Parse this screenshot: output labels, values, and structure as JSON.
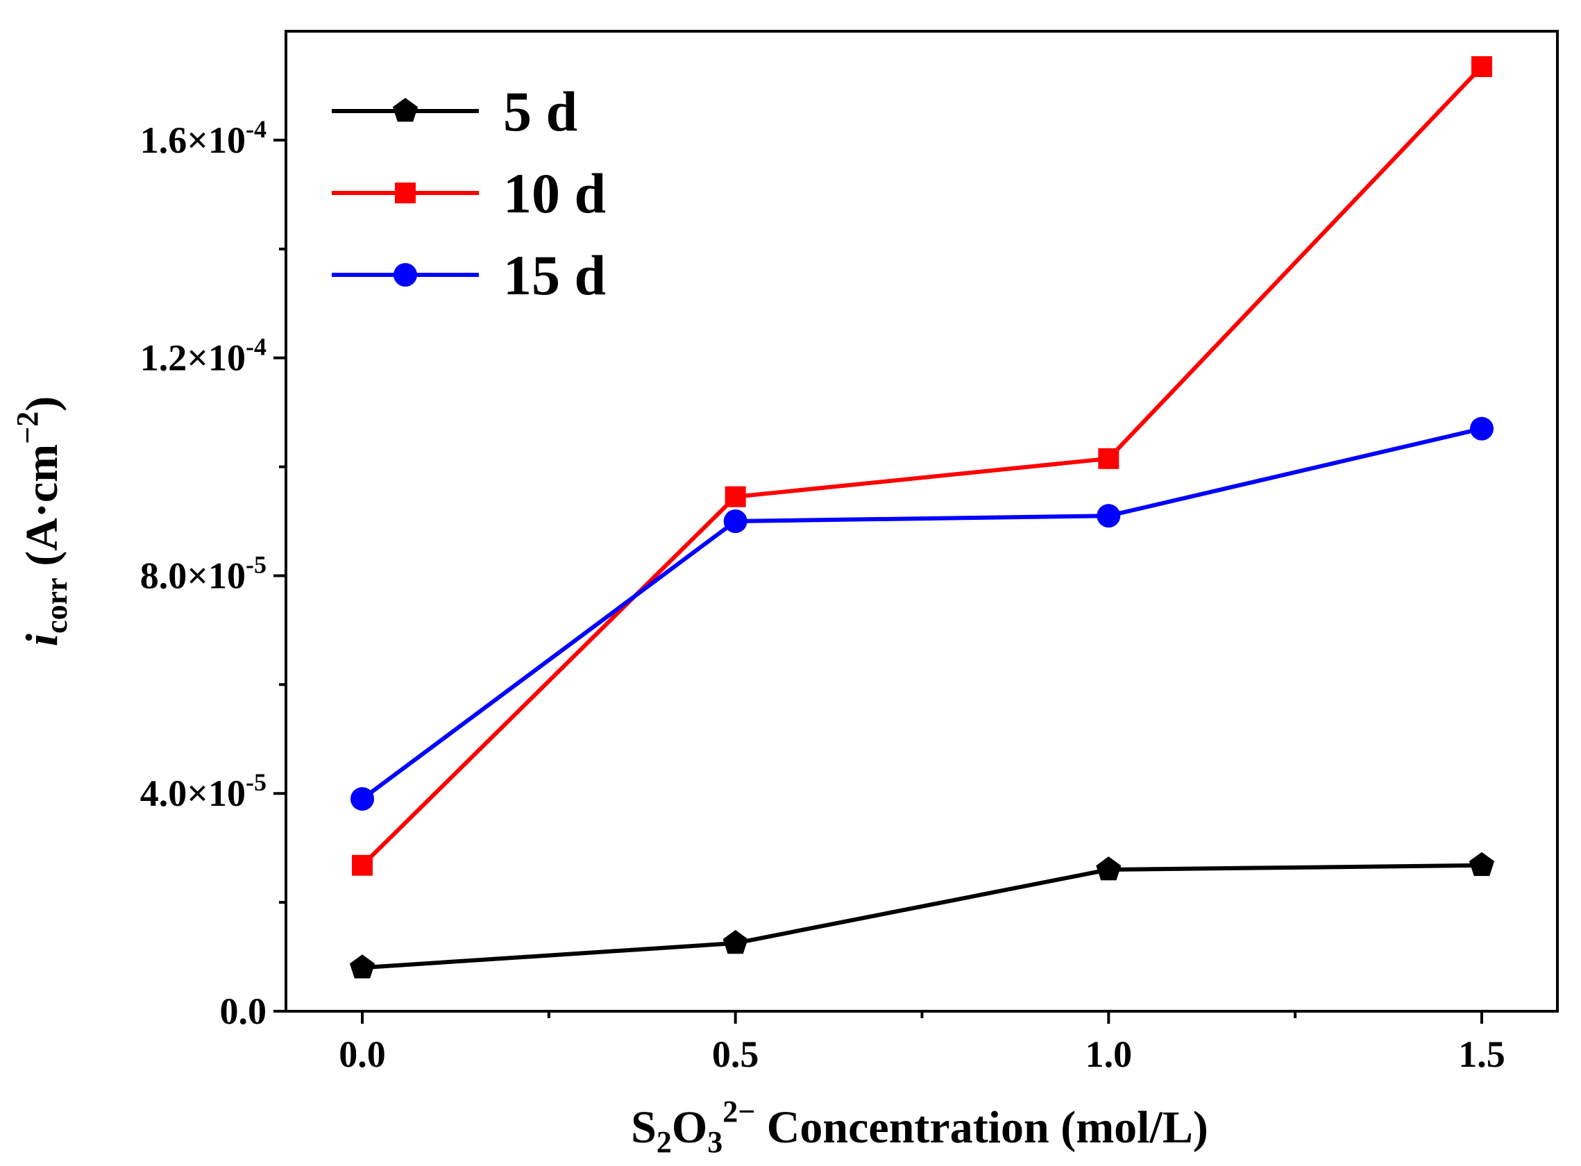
{
  "chart_data": {
    "type": "line",
    "title": "",
    "xlabel": {
      "prefix": "S",
      "sub1": "2",
      "mid": "O",
      "sub2": "3",
      "sup": "2−",
      "rest": " Concentration (mol/L)"
    },
    "ylabel": {
      "italic": "i",
      "sub": "corr",
      "rest": " (A·cm",
      "sup": "−2",
      "close": ")"
    },
    "x": [
      0.0,
      0.5,
      1.0,
      1.5
    ],
    "xlim": [
      -0.1,
      1.6
    ],
    "ylim": [
      0,
      0.00018
    ],
    "x_ticks": [
      {
        "value": 0.0,
        "label": "0.0"
      },
      {
        "value": 0.5,
        "label": "0.5"
      },
      {
        "value": 1.0,
        "label": "1.0"
      },
      {
        "value": 1.5,
        "label": "1.5"
      }
    ],
    "x_minor_ticks": [
      0.25,
      0.75,
      1.25
    ],
    "y_ticks": [
      {
        "value": 0,
        "mantissa": "0.0",
        "exp": ""
      },
      {
        "value": 4e-05,
        "mantissa": "4.0×10",
        "exp": "-5"
      },
      {
        "value": 8e-05,
        "mantissa": "8.0×10",
        "exp": "-5"
      },
      {
        "value": 0.00012,
        "mantissa": "1.2×10",
        "exp": "-4"
      },
      {
        "value": 0.00016,
        "mantissa": "1.6×10",
        "exp": "-4"
      }
    ],
    "y_minor_ticks": [
      2e-05,
      6e-05,
      0.0001,
      0.00014
    ],
    "legend_position": "top-left",
    "series": [
      {
        "name": "5 d",
        "color": "#000000",
        "marker": "pentagon",
        "values": [
          8e-06,
          1.25e-05,
          2.6e-05,
          2.68e-05
        ]
      },
      {
        "name": "10 d",
        "color": "#ff0000",
        "marker": "square",
        "values": [
          2.68e-05,
          9.45e-05,
          0.0001015,
          0.0001735
        ]
      },
      {
        "name": "15 d",
        "color": "#0000ff",
        "marker": "circle",
        "values": [
          3.9e-05,
          9e-05,
          9.1e-05,
          0.000107
        ]
      }
    ]
  }
}
